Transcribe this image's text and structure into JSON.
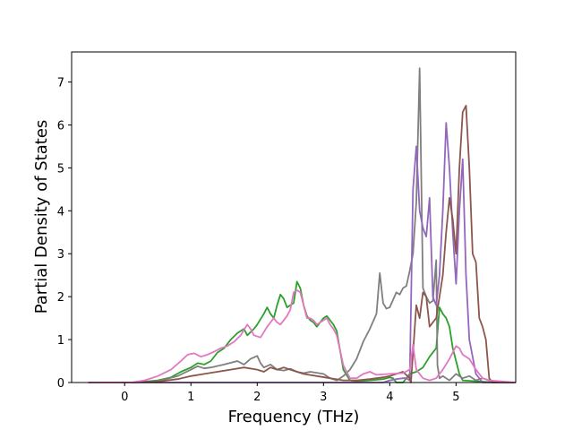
{
  "chart_data": {
    "type": "line",
    "title": "",
    "xlabel": "Frequency (THz)",
    "ylabel": "Partial Density of States",
    "xlim": [
      -0.8,
      5.9
    ],
    "ylim": [
      0,
      7.7
    ],
    "x_ticks": [
      0,
      1,
      2,
      3,
      4,
      5
    ],
    "y_ticks": [
      0,
      1,
      2,
      3,
      4,
      5,
      6,
      7
    ],
    "grid": false,
    "legend": "none",
    "series": [
      {
        "color": "#2ca02c",
        "points": [
          [
            -0.55,
            0
          ],
          [
            0.1,
            0
          ],
          [
            0.3,
            0.02
          ],
          [
            0.5,
            0.05
          ],
          [
            0.7,
            0.12
          ],
          [
            0.85,
            0.25
          ],
          [
            1.0,
            0.35
          ],
          [
            1.1,
            0.45
          ],
          [
            1.2,
            0.42
          ],
          [
            1.3,
            0.5
          ],
          [
            1.4,
            0.7
          ],
          [
            1.5,
            0.8
          ],
          [
            1.6,
            1.0
          ],
          [
            1.7,
            1.15
          ],
          [
            1.8,
            1.25
          ],
          [
            1.85,
            1.1
          ],
          [
            1.95,
            1.25
          ],
          [
            2.0,
            1.35
          ],
          [
            2.1,
            1.6
          ],
          [
            2.15,
            1.75
          ],
          [
            2.2,
            1.6
          ],
          [
            2.25,
            1.5
          ],
          [
            2.3,
            1.8
          ],
          [
            2.35,
            2.05
          ],
          [
            2.4,
            1.95
          ],
          [
            2.45,
            1.75
          ],
          [
            2.55,
            1.85
          ],
          [
            2.6,
            2.35
          ],
          [
            2.65,
            2.2
          ],
          [
            2.7,
            1.8
          ],
          [
            2.75,
            1.55
          ],
          [
            2.8,
            1.45
          ],
          [
            2.85,
            1.4
          ],
          [
            2.9,
            1.3
          ],
          [
            3.0,
            1.5
          ],
          [
            3.05,
            1.55
          ],
          [
            3.1,
            1.45
          ],
          [
            3.15,
            1.35
          ],
          [
            3.2,
            1.2
          ],
          [
            3.3,
            0.3
          ],
          [
            3.4,
            0.05
          ],
          [
            3.5,
            0.03
          ],
          [
            3.7,
            0.05
          ],
          [
            3.9,
            0.08
          ],
          [
            4.0,
            0.12
          ],
          [
            4.05,
            0.1
          ],
          [
            4.1,
            0
          ],
          [
            4.2,
            0
          ],
          [
            4.25,
            0.1
          ],
          [
            4.3,
            0.2
          ],
          [
            4.4,
            0.25
          ],
          [
            4.5,
            0.35
          ],
          [
            4.6,
            0.6
          ],
          [
            4.7,
            0.8
          ],
          [
            4.75,
            1.75
          ],
          [
            4.8,
            1.6
          ],
          [
            4.85,
            1.5
          ],
          [
            4.9,
            1.3
          ],
          [
            4.95,
            0.8
          ],
          [
            5.0,
            0.5
          ],
          [
            5.05,
            0.2
          ],
          [
            5.1,
            0.05
          ],
          [
            5.6,
            0
          ]
        ]
      },
      {
        "color": "#7f7f7f",
        "points": [
          [
            -0.55,
            0
          ],
          [
            0.1,
            0
          ],
          [
            0.5,
            0.03
          ],
          [
            0.8,
            0.15
          ],
          [
            1.0,
            0.3
          ],
          [
            1.1,
            0.38
          ],
          [
            1.2,
            0.33
          ],
          [
            1.3,
            0.35
          ],
          [
            1.5,
            0.42
          ],
          [
            1.7,
            0.5
          ],
          [
            1.8,
            0.42
          ],
          [
            1.9,
            0.55
          ],
          [
            2.0,
            0.62
          ],
          [
            2.05,
            0.45
          ],
          [
            2.1,
            0.35
          ],
          [
            2.2,
            0.42
          ],
          [
            2.3,
            0.3
          ],
          [
            2.4,
            0.28
          ],
          [
            2.5,
            0.32
          ],
          [
            2.6,
            0.25
          ],
          [
            2.7,
            0.22
          ],
          [
            2.8,
            0.25
          ],
          [
            3.0,
            0.2
          ],
          [
            3.1,
            0.1
          ],
          [
            3.2,
            0.05
          ],
          [
            3.3,
            0.15
          ],
          [
            3.4,
            0.3
          ],
          [
            3.5,
            0.55
          ],
          [
            3.55,
            0.75
          ],
          [
            3.6,
            0.95
          ],
          [
            3.7,
            1.25
          ],
          [
            3.8,
            1.6
          ],
          [
            3.85,
            2.55
          ],
          [
            3.9,
            1.85
          ],
          [
            3.95,
            1.72
          ],
          [
            4.0,
            1.75
          ],
          [
            4.1,
            2.1
          ],
          [
            4.15,
            2.05
          ],
          [
            4.2,
            2.2
          ],
          [
            4.25,
            2.25
          ],
          [
            4.3,
            2.6
          ],
          [
            4.35,
            3.0
          ],
          [
            4.4,
            4.2
          ],
          [
            4.45,
            7.32
          ],
          [
            4.5,
            2.2
          ],
          [
            4.55,
            2.0
          ],
          [
            4.6,
            1.85
          ],
          [
            4.65,
            1.9
          ],
          [
            4.7,
            2.85
          ],
          [
            4.72,
            0.4
          ],
          [
            4.75,
            0.1
          ],
          [
            4.8,
            0.15
          ],
          [
            4.9,
            0.05
          ],
          [
            5.0,
            0.2
          ],
          [
            5.1,
            0.1
          ],
          [
            5.2,
            0.15
          ],
          [
            5.3,
            0.05
          ],
          [
            5.4,
            0.1
          ],
          [
            5.5,
            0.05
          ],
          [
            5.6,
            0.02
          ],
          [
            5.9,
            0
          ]
        ]
      },
      {
        "color": "#9467bd",
        "points": [
          [
            -0.55,
            0
          ],
          [
            3.9,
            0
          ],
          [
            4.0,
            0.05
          ],
          [
            4.1,
            0.08
          ],
          [
            4.2,
            0.1
          ],
          [
            4.25,
            0.1
          ],
          [
            4.3,
            0.05
          ],
          [
            4.35,
            4.5
          ],
          [
            4.4,
            5.5
          ],
          [
            4.45,
            4.0
          ],
          [
            4.5,
            3.6
          ],
          [
            4.55,
            3.4
          ],
          [
            4.6,
            4.3
          ],
          [
            4.65,
            2.0
          ],
          [
            4.7,
            1.8
          ],
          [
            4.75,
            2.5
          ],
          [
            4.8,
            4.0
          ],
          [
            4.85,
            6.05
          ],
          [
            4.9,
            5.0
          ],
          [
            4.95,
            3.5
          ],
          [
            5.0,
            2.3
          ],
          [
            5.05,
            4.0
          ],
          [
            5.1,
            5.2
          ],
          [
            5.15,
            2.5
          ],
          [
            5.2,
            1.0
          ],
          [
            5.3,
            0.2
          ],
          [
            5.4,
            0
          ],
          [
            5.9,
            0
          ]
        ]
      },
      {
        "color": "#8c564b",
        "points": [
          [
            -0.55,
            0
          ],
          [
            0.1,
            0
          ],
          [
            0.5,
            0.02
          ],
          [
            0.8,
            0.08
          ],
          [
            1.0,
            0.15
          ],
          [
            1.2,
            0.2
          ],
          [
            1.4,
            0.25
          ],
          [
            1.6,
            0.3
          ],
          [
            1.8,
            0.35
          ],
          [
            2.0,
            0.3
          ],
          [
            2.1,
            0.25
          ],
          [
            2.2,
            0.35
          ],
          [
            2.3,
            0.3
          ],
          [
            2.4,
            0.35
          ],
          [
            2.5,
            0.3
          ],
          [
            2.6,
            0.25
          ],
          [
            2.7,
            0.2
          ],
          [
            2.9,
            0.15
          ],
          [
            3.1,
            0.1
          ],
          [
            3.3,
            0.05
          ],
          [
            3.5,
            0.05
          ],
          [
            3.7,
            0.08
          ],
          [
            3.9,
            0.12
          ],
          [
            4.0,
            0.15
          ],
          [
            4.1,
            0.2
          ],
          [
            4.2,
            0.25
          ],
          [
            4.3,
            0.1
          ],
          [
            4.32,
            0
          ],
          [
            4.4,
            1.8
          ],
          [
            4.45,
            1.5
          ],
          [
            4.5,
            2.1
          ],
          [
            4.55,
            2.0
          ],
          [
            4.6,
            1.3
          ],
          [
            4.7,
            1.5
          ],
          [
            4.8,
            2.5
          ],
          [
            4.85,
            3.5
          ],
          [
            4.9,
            4.3
          ],
          [
            4.95,
            3.8
          ],
          [
            5.0,
            3.0
          ],
          [
            5.05,
            5.0
          ],
          [
            5.1,
            6.3
          ],
          [
            5.15,
            6.45
          ],
          [
            5.2,
            5.0
          ],
          [
            5.25,
            3.0
          ],
          [
            5.3,
            2.8
          ],
          [
            5.35,
            1.5
          ],
          [
            5.4,
            1.3
          ],
          [
            5.45,
            1.0
          ],
          [
            5.5,
            0.1
          ],
          [
            5.55,
            0
          ],
          [
            5.9,
            0
          ]
        ]
      },
      {
        "color": "#e377c2",
        "points": [
          [
            -0.55,
            0
          ],
          [
            0.1,
            0
          ],
          [
            0.3,
            0.05
          ],
          [
            0.5,
            0.15
          ],
          [
            0.7,
            0.3
          ],
          [
            0.85,
            0.5
          ],
          [
            0.95,
            0.65
          ],
          [
            1.05,
            0.68
          ],
          [
            1.15,
            0.6
          ],
          [
            1.25,
            0.65
          ],
          [
            1.35,
            0.72
          ],
          [
            1.45,
            0.8
          ],
          [
            1.55,
            0.85
          ],
          [
            1.65,
            0.95
          ],
          [
            1.75,
            1.1
          ],
          [
            1.85,
            1.35
          ],
          [
            1.9,
            1.25
          ],
          [
            1.95,
            1.1
          ],
          [
            2.05,
            1.05
          ],
          [
            2.15,
            1.3
          ],
          [
            2.25,
            1.5
          ],
          [
            2.3,
            1.4
          ],
          [
            2.35,
            1.35
          ],
          [
            2.45,
            1.55
          ],
          [
            2.5,
            1.7
          ],
          [
            2.55,
            2.1
          ],
          [
            2.6,
            2.15
          ],
          [
            2.65,
            2.1
          ],
          [
            2.7,
            1.8
          ],
          [
            2.75,
            1.5
          ],
          [
            2.8,
            1.5
          ],
          [
            2.85,
            1.45
          ],
          [
            2.9,
            1.35
          ],
          [
            3.0,
            1.45
          ],
          [
            3.05,
            1.5
          ],
          [
            3.1,
            1.35
          ],
          [
            3.15,
            1.25
          ],
          [
            3.2,
            1.1
          ],
          [
            3.3,
            0.4
          ],
          [
            3.4,
            0.1
          ],
          [
            3.5,
            0.1
          ],
          [
            3.6,
            0.2
          ],
          [
            3.7,
            0.25
          ],
          [
            3.8,
            0.18
          ],
          [
            4.0,
            0.2
          ],
          [
            4.2,
            0.22
          ],
          [
            4.3,
            0.3
          ],
          [
            4.35,
            0.88
          ],
          [
            4.4,
            0.3
          ],
          [
            4.45,
            0.2
          ],
          [
            4.5,
            0.1
          ],
          [
            4.6,
            0.05
          ],
          [
            4.7,
            0.1
          ],
          [
            4.8,
            0.3
          ],
          [
            4.9,
            0.55
          ],
          [
            5.0,
            0.85
          ],
          [
            5.05,
            0.8
          ],
          [
            5.1,
            0.65
          ],
          [
            5.2,
            0.55
          ],
          [
            5.3,
            0.3
          ],
          [
            5.4,
            0.1
          ],
          [
            5.5,
            0.05
          ],
          [
            5.9,
            0
          ]
        ]
      }
    ]
  }
}
